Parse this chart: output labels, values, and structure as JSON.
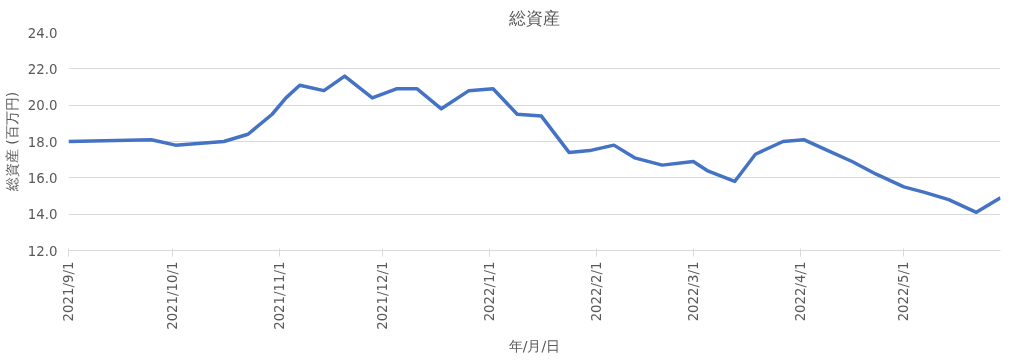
{
  "chart_data": {
    "type": "line",
    "title": "総資産",
    "xlabel": "年/月/日",
    "ylabel": "総資産 (百万円)",
    "x": [
      "2021-09-01",
      "2021-09-25",
      "2021-10-02",
      "2021-10-16",
      "2021-10-23",
      "2021-10-30",
      "2021-11-03",
      "2021-11-07",
      "2021-11-14",
      "2021-11-20",
      "2021-11-28",
      "2021-12-05",
      "2021-12-11",
      "2021-12-18",
      "2021-12-26",
      "2022-01-02",
      "2022-01-09",
      "2022-01-16",
      "2022-01-24",
      "2022-01-30",
      "2022-02-06",
      "2022-02-12",
      "2022-02-20",
      "2022-03-01",
      "2022-03-05",
      "2022-03-13",
      "2022-03-19",
      "2022-03-27",
      "2022-04-02",
      "2022-04-09",
      "2022-04-16",
      "2022-04-23",
      "2022-05-01",
      "2022-05-07",
      "2022-05-14",
      "2022-05-22",
      "2022-05-29"
    ],
    "series": [
      {
        "color": "#4472c4",
        "values": [
          18.0,
          18.1,
          17.8,
          18.0,
          18.4,
          19.5,
          20.4,
          21.1,
          20.8,
          21.6,
          20.4,
          20.9,
          20.9,
          19.8,
          20.8,
          20.9,
          19.5,
          19.4,
          17.4,
          17.5,
          17.8,
          17.1,
          16.7,
          16.9,
          16.4,
          15.8,
          17.3,
          18.0,
          18.1,
          17.5,
          16.9,
          16.2,
          15.5,
          15.2,
          14.8,
          14.1,
          14.9
        ]
      }
    ],
    "xlim": [
      "2021-09-01",
      "2022-05-29"
    ],
    "xticks": [
      {
        "value": "2021-09-01",
        "label": "2021/9/1"
      },
      {
        "value": "2021-10-01",
        "label": "2021/10/1"
      },
      {
        "value": "2021-11-01",
        "label": "2021/11/1"
      },
      {
        "value": "2021-12-01",
        "label": "2021/12/1"
      },
      {
        "value": "2022-01-01",
        "label": "2022/1/1"
      },
      {
        "value": "2022-02-01",
        "label": "2022/2/1"
      },
      {
        "value": "2022-03-01",
        "label": "2022/3/1"
      },
      {
        "value": "2022-04-01",
        "label": "2022/4/1"
      },
      {
        "value": "2022-05-01",
        "label": "2022/5/1"
      }
    ],
    "ylim": [
      12,
      24
    ],
    "yticks": [
      {
        "value": 12,
        "label": "12.0"
      },
      {
        "value": 14,
        "label": "14.0"
      },
      {
        "value": 16,
        "label": "16.0"
      },
      {
        "value": 18,
        "label": "18.0"
      },
      {
        "value": 20,
        "label": "20.0"
      },
      {
        "value": 22,
        "label": "22.0"
      },
      {
        "value": 24,
        "label": "24.0"
      }
    ],
    "grid": "y",
    "marker": "none",
    "line_style": "solid"
  }
}
